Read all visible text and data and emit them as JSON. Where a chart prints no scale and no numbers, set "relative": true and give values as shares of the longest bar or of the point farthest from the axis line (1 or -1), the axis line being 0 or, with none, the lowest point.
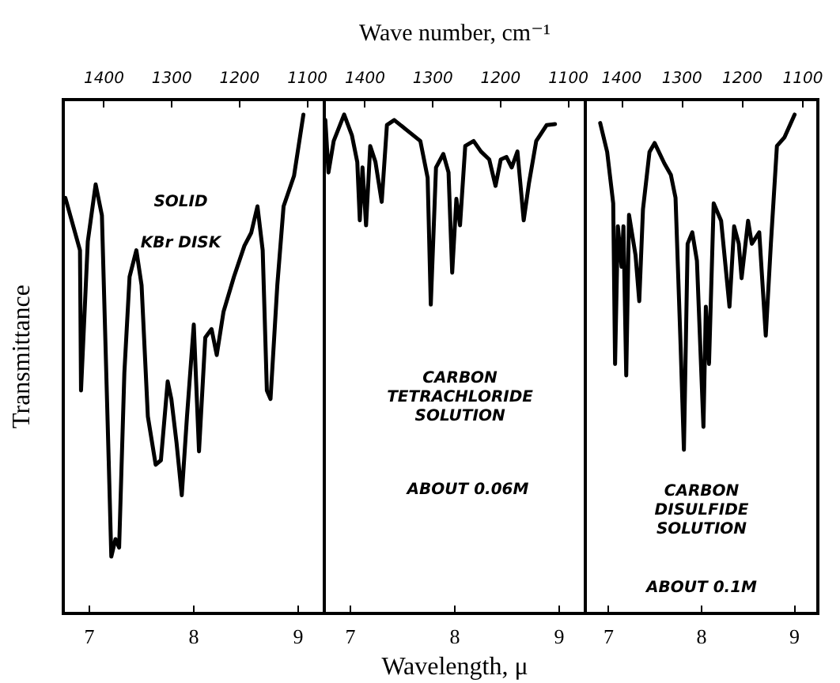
{
  "chart_data": [
    {
      "type": "line",
      "relative": true,
      "ylabel": "Transmittance",
      "xlim": [
        6.75,
        9.25
      ],
      "xticks": [
        7,
        8,
        9
      ],
      "x2lim": [
        1460,
        1075
      ],
      "x2ticks": [
        1400,
        1300,
        1200,
        1100
      ],
      "annotations": [
        "SOLID",
        "KBr DISK"
      ],
      "x": [
        6.77,
        6.91,
        6.92,
        6.985,
        7.06,
        7.12,
        7.185,
        7.21,
        7.25,
        7.285,
        7.335,
        7.385,
        7.45,
        7.5,
        7.56,
        7.635,
        7.685,
        7.75,
        7.785,
        7.835,
        7.885,
        7.935,
        8.0,
        8.05,
        8.11,
        8.17,
        8.22,
        8.285,
        8.385,
        8.485,
        8.55,
        8.61,
        8.66,
        8.7,
        8.735,
        8.8,
        8.86,
        8.96,
        9.05
      ],
      "series": [
        {
          "color": "#000000",
          "values": [
            0.833,
            0.728,
            0.447,
            0.746,
            0.86,
            0.798,
            0.307,
            0.114,
            0.149,
            0.132,
            0.482,
            0.675,
            0.728,
            0.658,
            0.395,
            0.298,
            0.307,
            0.465,
            0.43,
            0.342,
            0.237,
            0.395,
            0.579,
            0.325,
            0.553,
            0.57,
            0.518,
            0.605,
            0.675,
            0.737,
            0.763,
            0.816,
            0.728,
            0.447,
            0.43,
            0.658,
            0.816,
            0.877,
            1.0
          ]
        }
      ]
    },
    {
      "type": "line",
      "relative": true,
      "xlabel": "Wavelength, μ",
      "x2label": "Wave number, cm⁻¹",
      "xlim": [
        6.75,
        9.25
      ],
      "xticks": [
        7,
        8,
        9
      ],
      "x2lim": [
        1460,
        1075
      ],
      "x2ticks": [
        1400,
        1300,
        1200,
        1100
      ],
      "annotations": [
        "CARBON\nTETRACHLORIDE\nSOLUTION",
        "ABOUT 0.06M"
      ],
      "x": [
        6.76,
        6.79,
        6.84,
        6.94,
        7.015,
        7.066,
        7.09,
        7.116,
        7.15,
        7.19,
        7.24,
        7.3,
        7.35,
        7.42,
        7.545,
        7.67,
        7.74,
        7.77,
        7.82,
        7.89,
        7.94,
        7.975,
        8.015,
        8.05,
        8.1,
        8.18,
        8.25,
        8.33,
        8.39,
        8.44,
        8.495,
        8.545,
        8.6,
        8.66,
        8.71,
        8.78,
        8.88,
        8.96
      ],
      "series": [
        {
          "color": "#000000",
          "values": [
            0.989,
            0.884,
            0.947,
            1.0,
            0.958,
            0.905,
            0.788,
            0.894,
            0.778,
            0.937,
            0.905,
            0.825,
            0.979,
            0.989,
            0.968,
            0.947,
            0.873,
            0.619,
            0.894,
            0.921,
            0.884,
            0.683,
            0.831,
            0.778,
            0.937,
            0.947,
            0.926,
            0.91,
            0.857,
            0.91,
            0.915,
            0.894,
            0.926,
            0.788,
            0.862,
            0.947,
            0.979,
            0.981
          ]
        }
      ]
    },
    {
      "type": "line",
      "relative": true,
      "xlim": [
        6.75,
        9.25
      ],
      "xticks": [
        7,
        8,
        9
      ],
      "x2lim": [
        1460,
        1075
      ],
      "x2ticks": [
        1400,
        1300,
        1200,
        1100
      ],
      "annotations": [
        "CARBON\nDISULFIDE\nSOLUTION",
        "ABOUT 0.1M"
      ],
      "x": [
        6.91,
        6.985,
        7.05,
        7.07,
        7.1,
        7.14,
        7.16,
        7.19,
        7.22,
        7.29,
        7.33,
        7.37,
        7.44,
        7.495,
        7.6,
        7.67,
        7.72,
        7.775,
        7.81,
        7.85,
        7.9,
        7.95,
        8.02,
        8.046,
        8.08,
        8.13,
        8.21,
        8.3,
        8.35,
        8.4,
        8.43,
        8.5,
        8.54,
        8.62,
        8.69,
        8.745,
        8.81,
        8.89,
        9.0
      ],
      "series": [
        {
          "color": "#000000",
          "values": [
            0.983,
            0.925,
            0.822,
            0.5,
            0.776,
            0.695,
            0.776,
            0.477,
            0.799,
            0.718,
            0.626,
            0.81,
            0.925,
            0.943,
            0.902,
            0.879,
            0.833,
            0.534,
            0.328,
            0.741,
            0.764,
            0.707,
            0.374,
            0.615,
            0.5,
            0.822,
            0.787,
            0.615,
            0.776,
            0.741,
            0.672,
            0.787,
            0.741,
            0.764,
            0.557,
            0.741,
            0.937,
            0.954,
            1.0
          ]
        }
      ]
    }
  ]
}
